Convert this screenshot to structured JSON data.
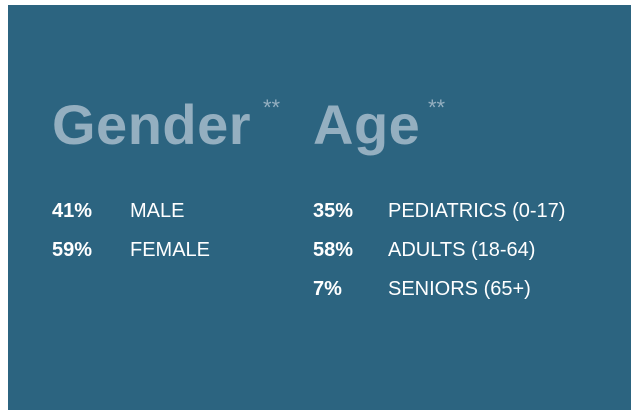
{
  "gender": {
    "title": "Gender",
    "mark": "**",
    "rows": [
      {
        "percent": "41%",
        "label": "MALE"
      },
      {
        "percent": "59%",
        "label": "FEMALE"
      }
    ]
  },
  "age": {
    "title": "Age",
    "mark": "**",
    "rows": [
      {
        "percent": "35%",
        "label": "PEDIATRICS (0-17)"
      },
      {
        "percent": "58%",
        "label": "ADULTS (18-64)"
      },
      {
        "percent": "7%",
        "label": "SENIORS (65+)"
      }
    ]
  }
}
